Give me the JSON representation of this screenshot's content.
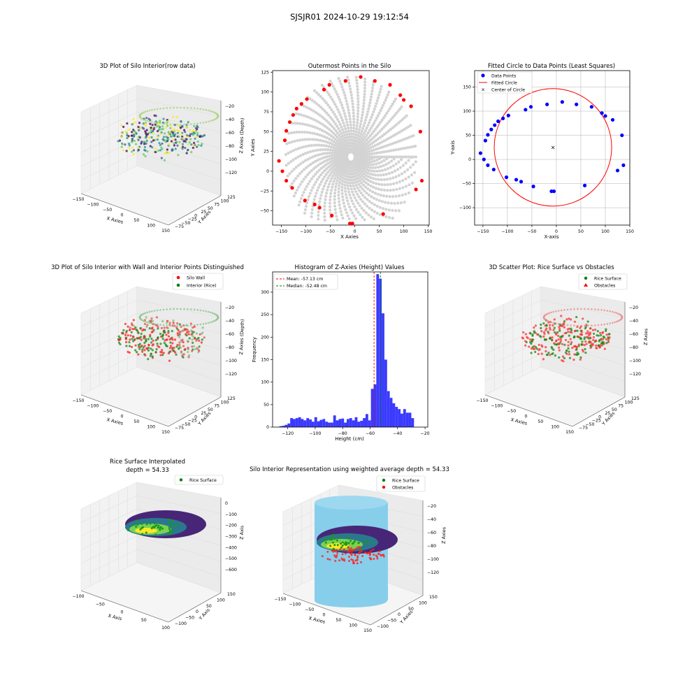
{
  "figure": {
    "suptitle": "SJSJR01 2024-10-29 19:12:54"
  },
  "colors": {
    "silo_wall": "#ff0000",
    "rice": "#008000",
    "gray_points": "#d3d3d3",
    "fitted_points": "#0000ff",
    "histogram": "#3a3aff",
    "cylinder": "#87ceeb"
  },
  "chart_data": [
    {
      "id": "p1",
      "type": "scatter3d",
      "title": "3D Plot of Silo Interior(row data)",
      "xlabel": "X Axies",
      "ylabel": "Y Axies",
      "zlabel": "Z Axies (Depth)",
      "xticks": [
        "−150",
        "−100",
        "−50",
        "0",
        "50",
        "100",
        "150"
      ],
      "yticks": [
        "−75",
        "−50",
        "−25",
        "0",
        "25",
        "50",
        "75",
        "100",
        "125"
      ],
      "zticks": [
        "−20",
        "−40",
        "−60",
        "−80",
        "−100",
        "−120"
      ],
      "colormap": "viridis"
    },
    {
      "id": "p2",
      "type": "scatter",
      "title": "Outermost Points in the Silo",
      "xlabel": "X Axies",
      "ylabel": "Y Axies",
      "xlim": [
        -168,
        152
      ],
      "ylim": [
        -68,
        127
      ],
      "xticks": [
        -150,
        -100,
        -50,
        0,
        50,
        100,
        150
      ],
      "yticks": [
        -50,
        -25,
        0,
        25,
        50,
        75,
        100,
        125
      ],
      "grid": false,
      "outer_points": [
        [
          -155,
          13
        ],
        [
          -148,
          0
        ],
        [
          -143,
          39
        ],
        [
          -140,
          51
        ],
        [
          -133,
          62
        ],
        [
          -126,
          71
        ],
        [
          -119,
          79
        ],
        [
          -109,
          85
        ],
        [
          -98,
          91
        ],
        [
          -82,
          -42
        ],
        [
          -72,
          -46
        ],
        [
          -63,
          103
        ],
        [
          -52,
          109
        ],
        [
          -47,
          -56
        ],
        [
          -19,
          114
        ],
        [
          -10,
          -66
        ],
        [
          -5,
          -66
        ],
        [
          12,
          119
        ],
        [
          41,
          114
        ],
        [
          58,
          -54
        ],
        [
          72,
          109
        ],
        [
          93,
          96
        ],
        [
          100,
          90
        ],
        [
          115,
          82
        ],
        [
          125,
          -23
        ],
        [
          134,
          50
        ],
        [
          137,
          -12
        ],
        [
          -140,
          -12
        ],
        [
          -128,
          -21
        ],
        [
          -102,
          -37
        ]
      ]
    },
    {
      "id": "p3",
      "type": "scatter",
      "title": "Fitted Circle to Data Points (Least Squares)",
      "xlabel": "X-axis",
      "ylabel": "Y-axis",
      "xlim": [
        -167,
        150
      ],
      "ylim": [
        -136,
        184
      ],
      "xticks": [
        -150,
        -100,
        -50,
        0,
        50,
        100,
        150
      ],
      "yticks": [
        -100,
        -50,
        0,
        50,
        100,
        150
      ],
      "grid": true,
      "legend_position": "top-left",
      "legend": [
        "Data Points",
        "Fitted Circle",
        "Center of Circle"
      ],
      "points": [
        [
          -155,
          13
        ],
        [
          -148,
          0
        ],
        [
          -145,
          39
        ],
        [
          -140,
          51
        ],
        [
          -133,
          62
        ],
        [
          -126,
          71
        ],
        [
          -119,
          79
        ],
        [
          -109,
          85
        ],
        [
          -98,
          91
        ],
        [
          -82,
          -42
        ],
        [
          -72,
          -46
        ],
        [
          -63,
          103
        ],
        [
          -52,
          109
        ],
        [
          -47,
          -56
        ],
        [
          -19,
          114
        ],
        [
          -10,
          -66
        ],
        [
          -5,
          -66
        ],
        [
          12,
          119
        ],
        [
          41,
          114
        ],
        [
          58,
          -54
        ],
        [
          72,
          109
        ],
        [
          93,
          96
        ],
        [
          100,
          90
        ],
        [
          115,
          82
        ],
        [
          125,
          -23
        ],
        [
          134,
          50
        ],
        [
          137,
          -12
        ],
        [
          -140,
          -12
        ],
        [
          -128,
          -21
        ],
        [
          -102,
          -37
        ]
      ],
      "circle": {
        "cx": -7,
        "cy": 25,
        "r": 120
      }
    },
    {
      "id": "p4",
      "type": "scatter3d",
      "title": "3D Plot of Silo Interior with Wall and Interior Points Distinguished",
      "xlabel": "X Axies",
      "ylabel": "Y Axies",
      "zlabel": "Z Axies (Depth)",
      "xticks": [
        "−150",
        "−100",
        "−50",
        "0",
        "50",
        "100",
        "150"
      ],
      "yticks": [
        "−75",
        "−50",
        "−25",
        "0",
        "25",
        "50",
        "75",
        "100",
        "125"
      ],
      "zticks": [
        "−20",
        "−40",
        "−60",
        "−80",
        "−100",
        "−120"
      ],
      "legend": [
        "Silo Wall",
        "Interior (Rice)"
      ],
      "legend_position": "top-right"
    },
    {
      "id": "p5",
      "type": "bar",
      "title": "Histogram of Z-Axies (Height) Values",
      "xlabel": "Height (cm)",
      "ylabel": "Frequency",
      "xlim": [
        -131,
        -18
      ],
      "ylim": [
        0,
        345
      ],
      "xticks": [
        -120,
        -100,
        -80,
        -60,
        -40,
        -20
      ],
      "yticks": [
        0,
        50,
        100,
        150,
        200,
        250,
        300
      ],
      "bin_start": -128,
      "bin_width": 1.96,
      "counts": [
        0,
        2,
        3,
        5,
        8,
        20,
        18,
        20,
        22,
        18,
        15,
        20,
        17,
        12,
        22,
        13,
        16,
        18,
        12,
        10,
        10,
        26,
        15,
        18,
        19,
        10,
        18,
        20,
        15,
        22,
        12,
        14,
        20,
        29,
        15,
        85,
        95,
        340,
        330,
        253,
        150,
        80,
        65,
        53,
        45,
        40,
        30,
        40,
        32,
        32,
        20,
        0
      ],
      "mean_line": {
        "value": -57.13,
        "label": "Mean: -57.13 cm"
      },
      "median_line": {
        "value": -52.48,
        "label": "Median: -52.48 cm"
      },
      "legend_position": "top-left"
    },
    {
      "id": "p6",
      "type": "scatter3d",
      "title": "3D Scatter Plot: Rice Surface vs Obstacles",
      "xlabel": "X Axies",
      "ylabel": "Y Axies",
      "zlabel": "Z Axies",
      "xticks": [
        "−150",
        "−100",
        "−50",
        "0",
        "50",
        "100",
        "150"
      ],
      "yticks": [
        "−75",
        "−50",
        "−25",
        "0",
        "25",
        "50",
        "75",
        "100",
        "125"
      ],
      "zticks": [
        "−20",
        "−40",
        "−60",
        "−80",
        "−100",
        "−120"
      ],
      "legend": [
        "Rice Surface",
        "Obstacles"
      ],
      "legend_position": "top-right"
    },
    {
      "id": "p7",
      "type": "surface3d",
      "title": "Rice Surface Interpolated",
      "subtitle": "depth = 54.33",
      "xlabel": "X Axis",
      "ylabel": "Y Axis",
      "zlabel": "Z Axis",
      "xticks": [
        "−100",
        "−50",
        "0",
        "50",
        "100"
      ],
      "yticks": [
        "−100",
        "−50",
        "0",
        "50",
        "100",
        "150"
      ],
      "zticks": [
        "0",
        "−100",
        "−200",
        "−300",
        "−400",
        "−500",
        "−600"
      ],
      "legend": [
        "Rice Surface"
      ],
      "legend_position": "top-right"
    },
    {
      "id": "p8",
      "type": "surface3d",
      "title": "Silo Interior Representation using weighted average depth = 54.33",
      "xlabel": "X Axies",
      "ylabel": "Y Axies",
      "zlabel": "Z Axies",
      "xticks": [
        "−150",
        "−100",
        "−50",
        "0",
        "50",
        "100",
        "150"
      ],
      "yticks": [
        "−100",
        "−50",
        "0",
        "50",
        "100",
        "150"
      ],
      "zticks": [
        "−20",
        "−40",
        "−60",
        "−80",
        "−100",
        "−120"
      ],
      "legend": [
        "Rice Surface",
        "Obstacles"
      ],
      "legend_position": "top-right"
    }
  ]
}
